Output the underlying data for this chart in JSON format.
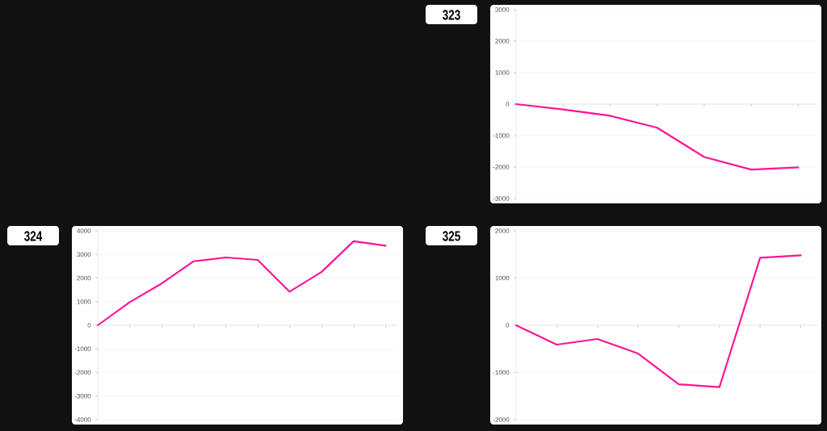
{
  "chart_data": [
    {
      "type": "line",
      "title": "323",
      "categories": [
        null,
        null,
        null,
        null,
        null,
        null,
        null
      ],
      "values": [
        0,
        -170,
        -370,
        -750,
        -1680,
        -2080,
        -2010
      ],
      "color": "#ff1493",
      "ylim": [
        -3000,
        3000
      ],
      "yticks": [
        -3000,
        -2000,
        -1000,
        0,
        1000,
        2000,
        3000
      ],
      "grid": "y",
      "tick_labels": "y"
    },
    {
      "type": "line",
      "title": "324",
      "categories": [
        null,
        null,
        null,
        null,
        null,
        null,
        null,
        null,
        null,
        null
      ],
      "values": [
        0,
        980,
        1770,
        2710,
        2870,
        2770,
        1420,
        2260,
        3560,
        3370
      ],
      "color": "#ff1493",
      "ylim": [
        -4000,
        4000
      ],
      "yticks": [
        -4000,
        -3000,
        -2000,
        -1000,
        0,
        1000,
        2000,
        3000,
        4000
      ],
      "grid": "y",
      "tick_labels": "y"
    },
    {
      "type": "line",
      "title": "325",
      "categories": [
        null,
        null,
        null,
        null,
        null,
        null,
        null,
        null
      ],
      "values": [
        0,
        -410,
        -290,
        -600,
        -1250,
        -1310,
        1430,
        1480
      ],
      "color": "#ff1493",
      "ylim": [
        -2000,
        2000
      ],
      "yticks": [
        -2000,
        -1000,
        0,
        1000,
        2000
      ],
      "grid": "y",
      "tick_labels": "y"
    }
  ]
}
